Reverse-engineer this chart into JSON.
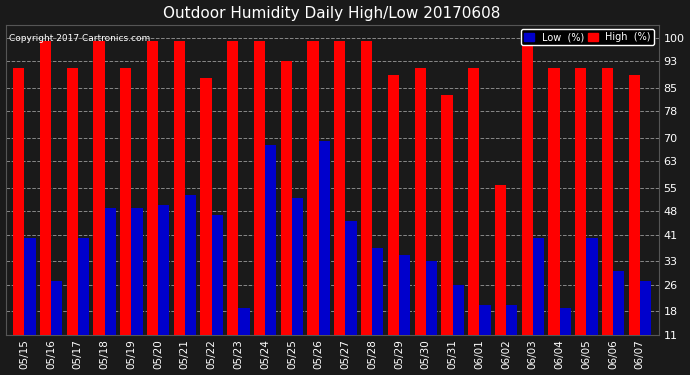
{
  "title": "Outdoor Humidity Daily High/Low 20170608",
  "copyright": "Copyright 2017 Cartronics.com",
  "dates": [
    "05/15",
    "05/16",
    "05/17",
    "05/18",
    "05/19",
    "05/20",
    "05/21",
    "05/22",
    "05/23",
    "05/24",
    "05/25",
    "05/26",
    "05/27",
    "05/28",
    "05/29",
    "05/30",
    "05/31",
    "06/01",
    "06/02",
    "06/03",
    "06/04",
    "06/05",
    "06/06",
    "06/07"
  ],
  "high": [
    91,
    99,
    91,
    99,
    91,
    99,
    99,
    88,
    99,
    99,
    93,
    99,
    99,
    99,
    89,
    91,
    83,
    91,
    56,
    99,
    91,
    91,
    91,
    89
  ],
  "low": [
    40,
    27,
    40,
    49,
    49,
    50,
    53,
    47,
    19,
    68,
    52,
    69,
    45,
    37,
    35,
    33,
    26,
    20,
    20,
    40,
    19,
    40,
    30,
    27
  ],
  "high_color": "#ff0000",
  "low_color": "#0000cc",
  "bg_color": "#1a1a1a",
  "plot_bg_color": "#1a1a1a",
  "grid_color": "#888888",
  "ylim": [
    11,
    104
  ],
  "yticks": [
    11,
    18,
    26,
    33,
    41,
    48,
    55,
    63,
    70,
    78,
    85,
    93,
    100
  ],
  "bar_width": 0.42,
  "title_color": "#ffffff",
  "tick_color": "#ffffff",
  "copyright_color": "#ffffff"
}
